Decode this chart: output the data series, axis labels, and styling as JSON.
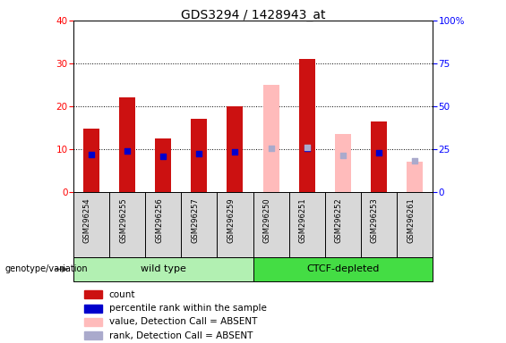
{
  "title": "GDS3294 / 1428943_at",
  "samples": [
    "GSM296254",
    "GSM296255",
    "GSM296256",
    "GSM296257",
    "GSM296259",
    "GSM296250",
    "GSM296251",
    "GSM296252",
    "GSM296253",
    "GSM296261"
  ],
  "groups": [
    {
      "name": "wild type",
      "start": 0,
      "end": 4,
      "color": "#b2f0b2"
    },
    {
      "name": "CTCF-depleted",
      "start": 5,
      "end": 9,
      "color": "#44dd44"
    }
  ],
  "count_values": [
    14.8,
    22.0,
    12.5,
    17.0,
    20.0,
    null,
    31.0,
    null,
    16.5,
    null
  ],
  "absent_value_bars": [
    null,
    null,
    null,
    null,
    null,
    25.0,
    null,
    13.5,
    null,
    7.0
  ],
  "percentile_rank": [
    22.0,
    24.0,
    21.0,
    22.5,
    23.5,
    null,
    25.5,
    null,
    23.0,
    null
  ],
  "rank_absent": [
    null,
    null,
    null,
    null,
    null,
    25.5,
    26.0,
    21.5,
    null,
    18.5
  ],
  "count_color": "#cc1111",
  "absent_bar_color": "#ffbbbb",
  "percentile_color": "#0000cc",
  "rank_absent_color": "#aaaacc",
  "ylim_left": [
    0,
    40
  ],
  "ylim_right": [
    0,
    100
  ],
  "yticks_left": [
    0,
    10,
    20,
    30,
    40
  ],
  "yticks_right": [
    0,
    25,
    50,
    75,
    100
  ],
  "ytick_labels_right": [
    "0",
    "25",
    "50",
    "75",
    "100%"
  ],
  "bar_width": 0.45,
  "dot_size": 25,
  "grid_color": "black",
  "grid_linestyle": "dotted",
  "sample_area_color": "#d8d8d8",
  "legend_items": [
    {
      "label": "count",
      "color": "#cc1111",
      "marker": "s"
    },
    {
      "label": "percentile rank within the sample",
      "color": "#0000cc",
      "marker": "s"
    },
    {
      "label": "value, Detection Call = ABSENT",
      "color": "#ffbbbb",
      "marker": "s"
    },
    {
      "label": "rank, Detection Call = ABSENT",
      "color": "#aaaacc",
      "marker": "s"
    }
  ]
}
